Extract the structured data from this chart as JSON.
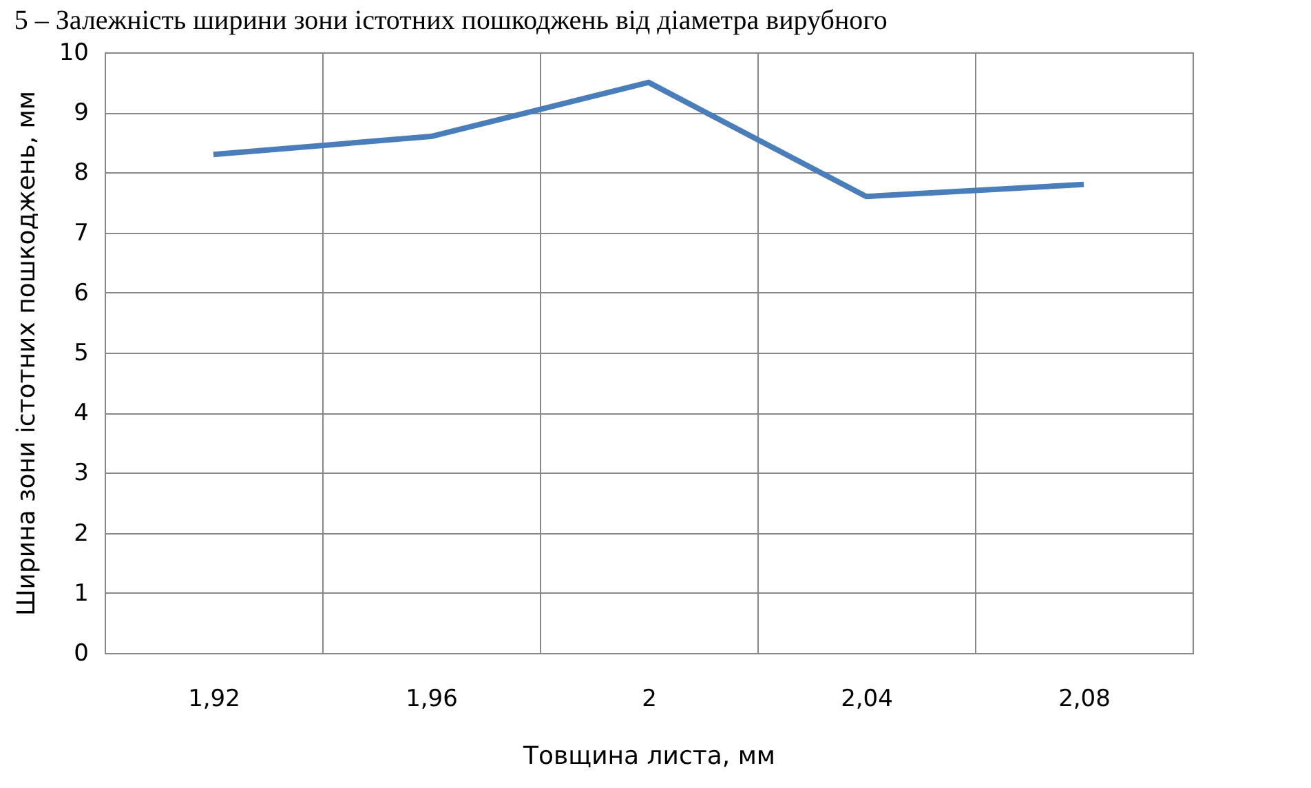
{
  "chart_data": {
    "type": "line",
    "title": "5 – Залежність ширини зони істотних пошкоджень від діаметра вирубного",
    "xlabel": "Товщина листа, мм",
    "ylabel": "Ширина зони істотних пошкоджень, мм",
    "categories": [
      "1,92",
      "1,96",
      "2",
      "2,04",
      "2,08"
    ],
    "series": [
      {
        "color": "#4a7ebb",
        "values": [
          8.3,
          8.6,
          9.5,
          7.6,
          7.8
        ]
      }
    ],
    "ylim": [
      0,
      10
    ],
    "yticks": [
      0,
      1,
      2,
      3,
      4,
      5,
      6,
      7,
      8,
      9,
      10
    ],
    "grid": true,
    "line_style": "solid",
    "marker": "none"
  }
}
